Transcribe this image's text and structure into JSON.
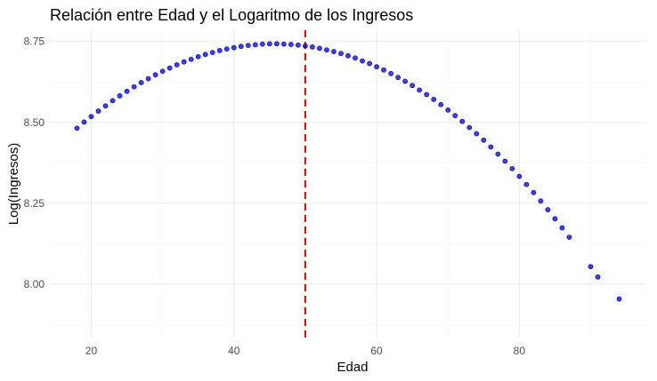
{
  "chart_data": {
    "type": "scatter",
    "title": "Relación entre Edad y el Logaritmo de los Ingresos",
    "xlabel": "Edad",
    "ylabel": "Log(Ingresos)",
    "xlim": [
      14.2,
      97.8
    ],
    "ylim": [
      7.835,
      8.785
    ],
    "x_ticks": [
      20,
      40,
      60,
      80
    ],
    "x_tick_labels": [
      "20",
      "40",
      "60",
      "80"
    ],
    "y_ticks": [
      8.0,
      8.25,
      8.5,
      8.75
    ],
    "y_tick_labels": [
      "8.00",
      "8.25",
      "8.50",
      "8.75"
    ],
    "grid": true,
    "reference_line": {
      "orientation": "vertical",
      "x": 50,
      "style": "dashed",
      "color": "#e00000"
    },
    "point_color": "#0000cc",
    "x": [
      18,
      19,
      20,
      21,
      22,
      23,
      24,
      25,
      26,
      27,
      28,
      29,
      30,
      31,
      32,
      33,
      34,
      35,
      36,
      37,
      38,
      39,
      40,
      41,
      42,
      43,
      44,
      45,
      46,
      47,
      48,
      49,
      50,
      51,
      52,
      53,
      54,
      55,
      56,
      57,
      58,
      59,
      60,
      61,
      62,
      63,
      64,
      65,
      66,
      67,
      68,
      69,
      70,
      71,
      72,
      73,
      74,
      75,
      76,
      77,
      78,
      79,
      80,
      81,
      82,
      83,
      84,
      85,
      86,
      87,
      90,
      91,
      94
    ],
    "y": [
      8.482,
      8.501,
      8.518,
      8.535,
      8.551,
      8.567,
      8.582,
      8.596,
      8.61,
      8.623,
      8.635,
      8.647,
      8.658,
      8.668,
      8.678,
      8.687,
      8.695,
      8.703,
      8.71,
      8.716,
      8.722,
      8.727,
      8.731,
      8.735,
      8.738,
      8.74,
      8.742,
      8.743,
      8.743,
      8.742,
      8.741,
      8.739,
      8.736,
      8.733,
      8.729,
      8.724,
      8.719,
      8.713,
      8.706,
      8.699,
      8.69,
      8.682,
      8.672,
      8.662,
      8.651,
      8.639,
      8.627,
      8.614,
      8.6,
      8.586,
      8.571,
      8.555,
      8.538,
      8.521,
      8.503,
      8.484,
      8.465,
      8.445,
      8.424,
      8.402,
      8.38,
      8.357,
      8.333,
      8.308,
      8.283,
      8.257,
      8.23,
      8.202,
      8.174,
      8.145,
      8.054,
      8.022,
      7.954
    ]
  }
}
